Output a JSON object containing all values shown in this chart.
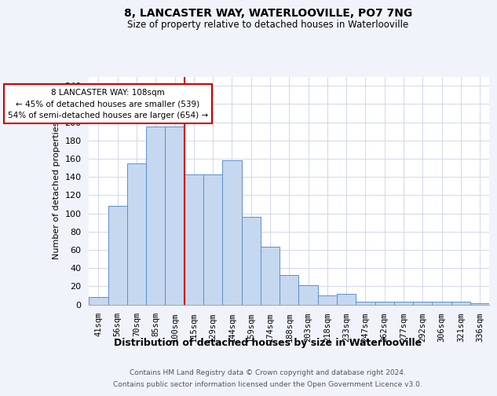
{
  "title": "8, LANCASTER WAY, WATERLOOVILLE, PO7 7NG",
  "subtitle": "Size of property relative to detached houses in Waterlooville",
  "xlabel": "Distribution of detached houses by size in Waterlooville",
  "ylabel": "Number of detached properties",
  "categories": [
    "41sqm",
    "56sqm",
    "70sqm",
    "85sqm",
    "100sqm",
    "115sqm",
    "129sqm",
    "144sqm",
    "159sqm",
    "174sqm",
    "188sqm",
    "203sqm",
    "218sqm",
    "233sqm",
    "247sqm",
    "262sqm",
    "277sqm",
    "292sqm",
    "306sqm",
    "321sqm",
    "336sqm"
  ],
  "values": [
    8,
    108,
    155,
    195,
    195,
    143,
    143,
    158,
    96,
    63,
    32,
    21,
    10,
    12,
    3,
    3,
    3,
    3,
    3,
    3,
    1
  ],
  "bar_color": "#c5d8f0",
  "bar_edge_color": "#5b8fc9",
  "vline_x": 4.5,
  "vline_color": "#cc0000",
  "annotation_title": "8 LANCASTER WAY: 108sqm",
  "annotation_line1": "← 45% of detached houses are smaller (539)",
  "annotation_line2": "54% of semi-detached houses are larger (654) →",
  "annotation_box_color": "white",
  "annotation_box_edge": "#cc0000",
  "ylim": [
    0,
    250
  ],
  "yticks": [
    0,
    20,
    40,
    60,
    80,
    100,
    120,
    140,
    160,
    180,
    200,
    220,
    240
  ],
  "footer_line1": "Contains HM Land Registry data © Crown copyright and database right 2024.",
  "footer_line2": "Contains public sector information licensed under the Open Government Licence v3.0.",
  "plot_bg_color": "#ffffff",
  "fig_bg_color": "#f0f4fa"
}
